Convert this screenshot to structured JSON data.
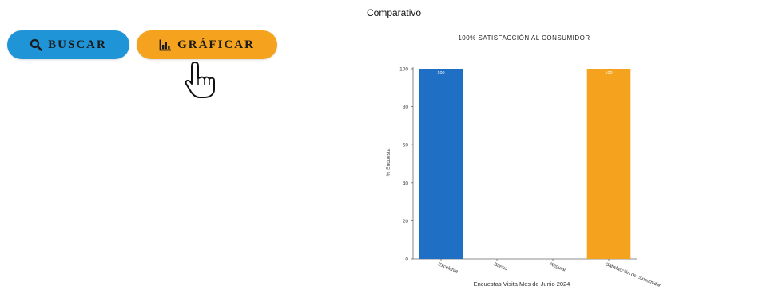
{
  "toolbar": {
    "search_label": "BUSCAR",
    "chart_label": "GRÁFICAR"
  },
  "section": {
    "title": "Comparativo"
  },
  "colors": {
    "search_button": "#1f95d8",
    "chart_button": "#f5a31e",
    "bar_blue": "#1f6fc4",
    "bar_orange": "#f5a31e"
  },
  "icons": {
    "search": "search-icon",
    "chart": "bar-chart-icon",
    "cursor": "hand-pointer-icon"
  },
  "chart_data": {
    "type": "bar",
    "title": "100% SATISFACCIÓN AL CONSUMIDOR",
    "xlabel": "Encuestas Visita Mes de Junio 2024",
    "ylabel": "% Encuesta",
    "categories": [
      "Excelente",
      "Bueno",
      "Regular",
      "Satisfacción de consumidor"
    ],
    "values": [
      100,
      0,
      0,
      100
    ],
    "data_labels": [
      "100",
      "",
      "",
      "100"
    ],
    "bar_colors": [
      "#1f6fc4",
      "#1f6fc4",
      "#1f6fc4",
      "#f5a31e"
    ],
    "ylim": [
      0,
      100
    ],
    "yticks": [
      0,
      20,
      40,
      60,
      80,
      100
    ],
    "grid": false,
    "legend": "none"
  }
}
